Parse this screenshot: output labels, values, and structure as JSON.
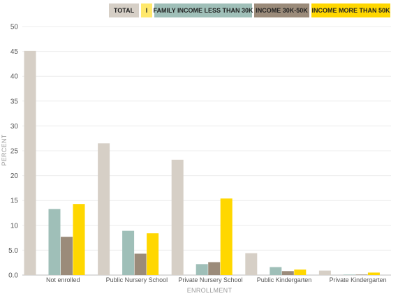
{
  "chart_data": {
    "type": "bar",
    "title": "",
    "xlabel": "ENROLLMENT",
    "ylabel": "PERCENT",
    "ylim": [
      0,
      50
    ],
    "yticks": [
      "0.0",
      "5.0",
      "10",
      "15",
      "20",
      "25",
      "30",
      "35",
      "40",
      "45",
      "50"
    ],
    "grid": true,
    "legend_position": "top-right",
    "categories": [
      "Not enrolled",
      "Public Nursery School",
      "Private Nursery School",
      "Public Kindergarten",
      "Private Kindergarten"
    ],
    "series": [
      {
        "name": "TOTAL",
        "color": "#d6cfc6",
        "values": [
          45.1,
          26.5,
          23.2,
          4.4,
          0.9
        ]
      },
      {
        "name": "I",
        "color": "#ffe86b",
        "values": [
          0,
          0,
          0,
          0,
          0
        ]
      },
      {
        "name": "FAMILY INCOME LESS THAN 30K",
        "color": "#9fbfb8",
        "values": [
          13.3,
          8.9,
          2.2,
          1.6,
          0.1
        ]
      },
      {
        "name": "INCOME 30K-50K",
        "color": "#9b8b7a",
        "values": [
          7.7,
          4.3,
          2.6,
          0.8,
          0.1
        ]
      },
      {
        "name": "INCOME MORE THAN 50K",
        "color": "#ffd700",
        "values": [
          14.3,
          8.4,
          15.4,
          1.1,
          0.5
        ]
      }
    ]
  }
}
